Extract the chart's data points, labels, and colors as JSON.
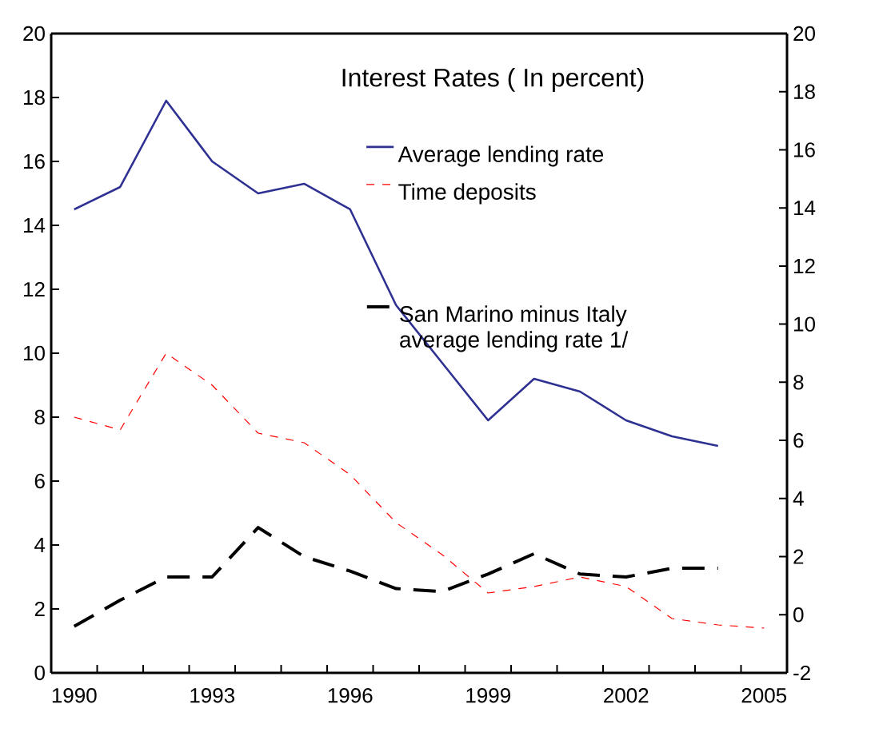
{
  "chart_data": {
    "type": "line",
    "title": "Interest Rates ( In percent)",
    "categories": [
      "1990",
      null,
      null,
      "1993",
      null,
      null,
      "1996",
      null,
      null,
      "1999",
      null,
      null,
      "2002",
      null,
      null,
      "2005"
    ],
    "series": [
      {
        "name": "Average lending rate",
        "color": "#2e3192",
        "line_style": "solid",
        "values": [
          14.5,
          15.2,
          17.9,
          16.0,
          15.0,
          15.3,
          14.5,
          11.5,
          9.7,
          7.9,
          9.2,
          8.8,
          7.9,
          7.4,
          7.1,
          null
        ]
      },
      {
        "name": "Time deposits",
        "color": "#ff0000",
        "line_style": "dashed",
        "values": [
          8.0,
          7.6,
          10.0,
          9.0,
          7.5,
          7.2,
          6.2,
          4.7,
          3.7,
          2.5,
          2.7,
          3.0,
          2.7,
          1.7,
          1.5,
          1.4
        ]
      },
      {
        "name": "San Marino minus Italy average lending rate 1/",
        "color": "#000000",
        "line_style": "dashed",
        "axis": "y2",
        "values": [
          -0.4,
          0.5,
          1.3,
          1.3,
          3.0,
          2.0,
          1.5,
          0.9,
          0.8,
          1.4,
          2.1,
          1.4,
          1.3,
          1.6,
          1.6,
          null
        ]
      }
    ],
    "ylim": [
      0,
      20
    ],
    "yticks": [
      0,
      2,
      4,
      6,
      8,
      10,
      12,
      14,
      16,
      18,
      20
    ],
    "y2lim": [
      -2,
      20
    ],
    "y2ticks": [
      -2,
      0,
      2,
      4,
      6,
      8,
      10,
      12,
      14,
      16,
      18,
      20
    ],
    "grid": false,
    "legend": "top right",
    "marker": "none"
  }
}
